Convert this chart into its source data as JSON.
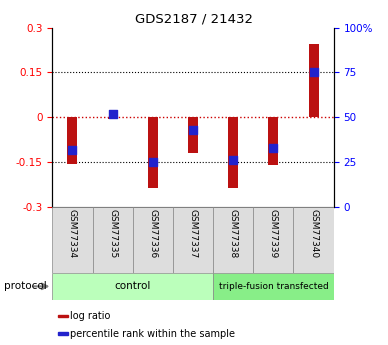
{
  "title": "GDS2187 / 21432",
  "samples": [
    "GSM77334",
    "GSM77335",
    "GSM77336",
    "GSM77337",
    "GSM77338",
    "GSM77339",
    "GSM77340"
  ],
  "log_ratio": [
    -0.155,
    -0.005,
    -0.235,
    -0.12,
    -0.235,
    -0.16,
    0.245
  ],
  "percentile_rank": [
    32,
    52,
    25,
    43,
    26,
    33,
    75
  ],
  "ylim": [
    -0.3,
    0.3
  ],
  "yticks_left": [
    -0.3,
    -0.15,
    0,
    0.15,
    0.3
  ],
  "yticks_right": [
    0,
    25,
    50,
    75,
    100
  ],
  "ytick_labels_right": [
    "0",
    "25",
    "50",
    "75",
    "100%"
  ],
  "groups": [
    {
      "label": "control",
      "start": 0,
      "end": 4,
      "color": "#bbffbb"
    },
    {
      "label": "triple-fusion transfected",
      "start": 4,
      "end": 7,
      "color": "#88ee88"
    }
  ],
  "bar_color": "#bb1111",
  "dot_color": "#2222cc",
  "bar_width": 0.25,
  "dot_size": 35,
  "hline_zero_color": "#cc0000",
  "bg_color": "#ffffff",
  "legend_items": [
    "log ratio",
    "percentile rank within the sample"
  ],
  "protocol_label": "protocol",
  "xlabels_bg": "#dddddd"
}
